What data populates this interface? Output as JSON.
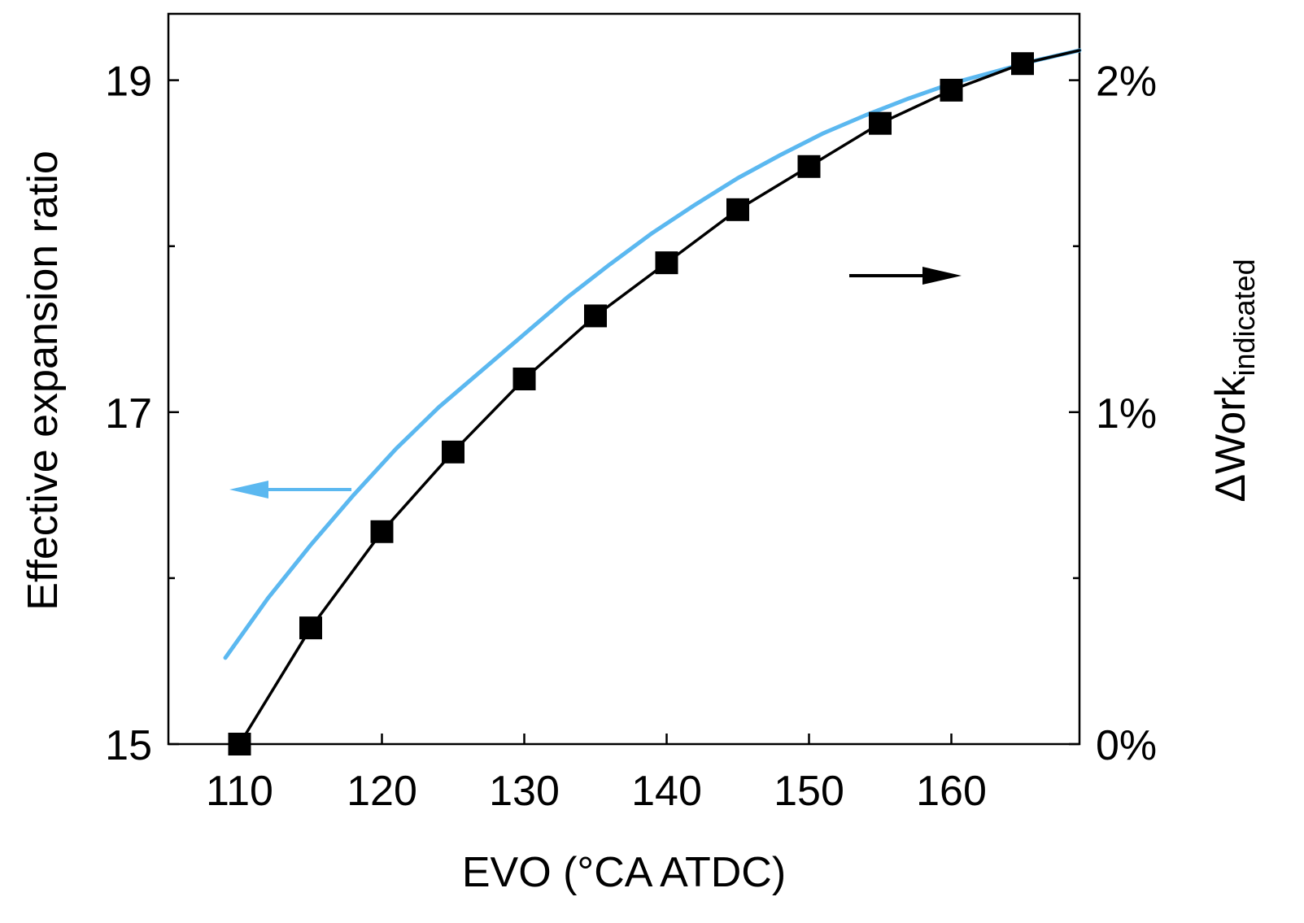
{
  "chart_data": {
    "type": "line",
    "xlabel": "EVO (°CA ATDC)",
    "ylabel_left": "Effective expansion ratio",
    "ylabel_right_main": "ΔWork",
    "ylabel_right_sub": "indicated",
    "xlim": [
      105,
      169
    ],
    "ylim_left": [
      15,
      19.4
    ],
    "ylim_right": [
      0,
      0.022
    ],
    "x_ticks": [
      {
        "value": 110,
        "label": "110"
      },
      {
        "value": 120,
        "label": "120"
      },
      {
        "value": 130,
        "label": "130"
      },
      {
        "value": 140,
        "label": "140"
      },
      {
        "value": 150,
        "label": "150"
      },
      {
        "value": 160,
        "label": "160"
      }
    ],
    "y_left_ticks": [
      {
        "value": 15,
        "label": "15"
      },
      {
        "value": 17,
        "label": "17"
      },
      {
        "value": 19,
        "label": "19"
      }
    ],
    "y_left_minor": [
      16,
      18
    ],
    "y_right_ticks": [
      {
        "value": 0,
        "label": "0%"
      },
      {
        "value": 0.01,
        "label": "1%"
      },
      {
        "value": 0.02,
        "label": "2%"
      }
    ],
    "y_right_minor": [
      0.005,
      0.015
    ],
    "series": [
      {
        "name": "Effective expansion ratio",
        "axis": "left",
        "color": "#5bb8f0",
        "marker": "none",
        "x": [
          109,
          112,
          115,
          118,
          121,
          124,
          127,
          130,
          133,
          136,
          139,
          142,
          145,
          148,
          151,
          154,
          157,
          160,
          163,
          166,
          169
        ],
        "values": [
          15.52,
          15.88,
          16.2,
          16.5,
          16.78,
          17.03,
          17.25,
          17.47,
          17.69,
          17.89,
          18.08,
          18.25,
          18.41,
          18.55,
          18.68,
          18.79,
          18.89,
          18.98,
          19.05,
          19.12,
          19.18
        ]
      },
      {
        "name": "ΔWork indicated",
        "axis": "right",
        "color": "#000000",
        "marker": "square",
        "x": [
          110,
          115,
          120,
          125,
          130,
          135,
          140,
          145,
          150,
          155,
          160,
          165
        ],
        "values": [
          0.0,
          0.0035,
          0.0064,
          0.0088,
          0.011,
          0.0129,
          0.0145,
          0.0161,
          0.0174,
          0.0187,
          0.0197,
          0.0205
        ],
        "extend_to": {
          "x": 169,
          "value": 0.0209
        }
      }
    ],
    "annotations": [
      {
        "kind": "arrow",
        "direction": "left",
        "color": "#5bb8f0",
        "meaning": "left axis"
      },
      {
        "kind": "arrow",
        "direction": "right",
        "color": "#000000",
        "meaning": "right axis"
      }
    ]
  }
}
